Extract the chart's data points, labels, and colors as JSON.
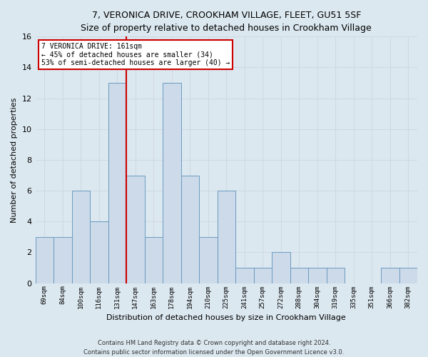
{
  "title": "7, VERONICA DRIVE, CROOKHAM VILLAGE, FLEET, GU51 5SF",
  "subtitle": "Size of property relative to detached houses in Crookham Village",
  "xlabel": "Distribution of detached houses by size in Crookham Village",
  "ylabel": "Number of detached properties",
  "footer1": "Contains HM Land Registry data © Crown copyright and database right 2024.",
  "footer2": "Contains public sector information licensed under the Open Government Licence v3.0.",
  "bin_labels": [
    "69sqm",
    "84sqm",
    "100sqm",
    "116sqm",
    "131sqm",
    "147sqm",
    "163sqm",
    "178sqm",
    "194sqm",
    "210sqm",
    "225sqm",
    "241sqm",
    "257sqm",
    "272sqm",
    "288sqm",
    "304sqm",
    "319sqm",
    "335sqm",
    "351sqm",
    "366sqm",
    "382sqm"
  ],
  "bar_heights": [
    3,
    3,
    6,
    4,
    13,
    7,
    3,
    13,
    7,
    3,
    6,
    1,
    1,
    2,
    1,
    1,
    1,
    0,
    0,
    1,
    1
  ],
  "bar_color": "#ccdaea",
  "bar_edge_color": "#6a9bbf",
  "vertical_line_index": 5.5,
  "vertical_line_color": "#cc0000",
  "annotation_text_line1": "7 VERONICA DRIVE: 161sqm",
  "annotation_text_line2": "← 45% of detached houses are smaller (34)",
  "annotation_text_line3": "53% of semi-detached houses are larger (40) →",
  "annotation_box_facecolor": "#ffffff",
  "annotation_box_edgecolor": "#cc0000",
  "ylim": [
    0,
    16
  ],
  "yticks": [
    0,
    2,
    4,
    6,
    8,
    10,
    12,
    14,
    16
  ],
  "grid_color": "#d0d8e4",
  "title_bg_color": "#dce8f0",
  "plot_bg_color": "#dce8f0",
  "fig_bg_color": "#dce8f0"
}
